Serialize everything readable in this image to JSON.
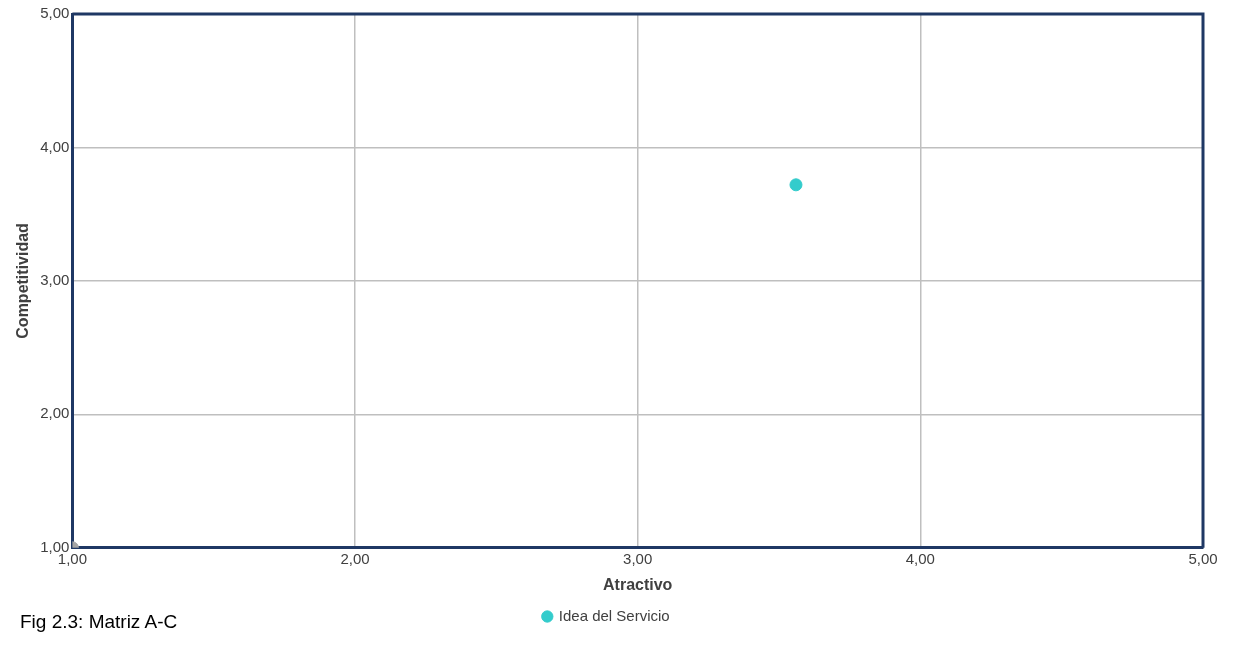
{
  "chart_data": {
    "type": "scatter",
    "xlabel": "Atractivo",
    "ylabel": "Competitividad",
    "annotations": [
      "Fig 2.3: Matriz A-C"
    ],
    "series": [
      {
        "name": "Idea del Servicio",
        "color": "#33cccc",
        "x": [
          3.56
        ],
        "values": [
          3.72
        ]
      },
      {
        "color": "#a5a5a5",
        "x": [
          1
        ],
        "values": [
          1
        ]
      }
    ],
    "xlim": [
      1,
      5
    ],
    "ylim": [
      1,
      5
    ],
    "xticks": [
      {
        "value": 1,
        "label": "1,00"
      },
      {
        "value": 2,
        "label": "2,00"
      },
      {
        "value": 3,
        "label": "3,00"
      },
      {
        "value": 4,
        "label": "4,00"
      },
      {
        "value": 5,
        "label": "5,00"
      }
    ],
    "yticks": [
      {
        "value": 1,
        "label": "1,00"
      },
      {
        "value": 2,
        "label": "2,00"
      },
      {
        "value": 3,
        "label": "3,00"
      },
      {
        "value": 4,
        "label": "4,00"
      },
      {
        "value": 5,
        "label": "5,00"
      }
    ],
    "grid": true,
    "legend": "bottom",
    "marker": "circle"
  }
}
